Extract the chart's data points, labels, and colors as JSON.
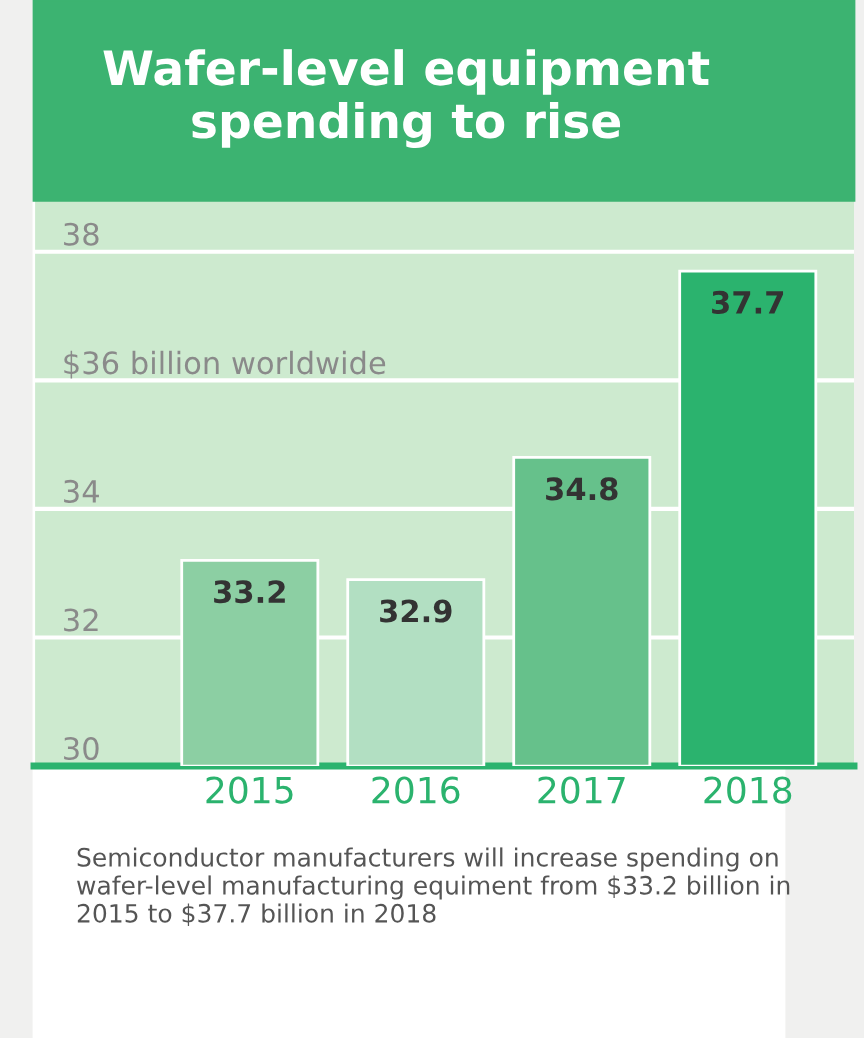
{
  "chart_data": {
    "type": "bar",
    "title": "Wafer-level equipment\nspending to rise",
    "categories": [
      "2015",
      "2016",
      "2017",
      "2018"
    ],
    "values": [
      33.2,
      32.9,
      34.8,
      37.7
    ],
    "colors": [
      "#8ccfa3",
      "#b2dfc2",
      "#66c18b",
      "#2bb36e"
    ],
    "ylim": [
      30,
      38.8
    ],
    "yticks": [
      30,
      32,
      34,
      {
        "value": 36,
        "label": "$36 billion worldwide"
      },
      38
    ],
    "grid": "y",
    "data_labels": true,
    "legend": false,
    "annotations": [
      "Semiconductor manufacturers will increase spending on wafer-level manufacturing equiment from $33.2 billion in 2015 to $37.7 billion in 2018"
    ]
  }
}
